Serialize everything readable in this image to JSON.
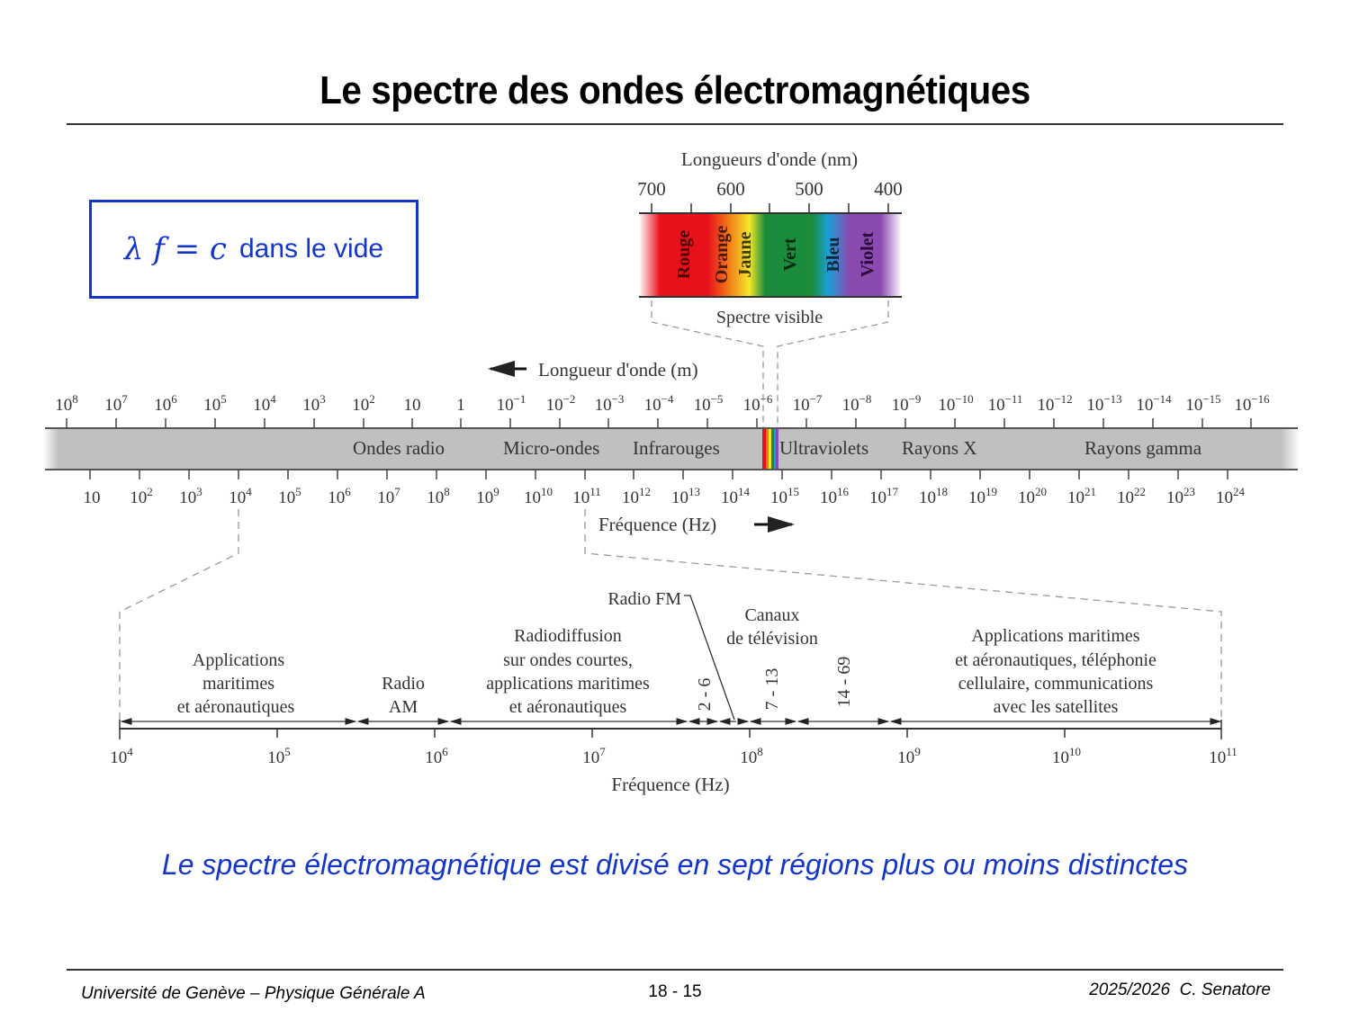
{
  "slide": {
    "title": "Le spectre des ondes électromagnétiques",
    "formula": "λ f = c",
    "formula_note": "dans le vide",
    "caption": "Le spectre électromagnétique est divisé en sept régions plus ou moins distinctes",
    "colors": {
      "accent_blue": "#1436c8",
      "band_gray": "#c0c0c0",
      "text_dark": "#333333"
    }
  },
  "visible_spectrum": {
    "axis_title": "Longueurs d'onde (nm)",
    "ticks": [
      "700",
      "600",
      "500",
      "400"
    ],
    "colors": [
      {
        "name": "Rouge",
        "hex": "#e8101a"
      },
      {
        "name": "Orange",
        "hex": "#f07818"
      },
      {
        "name": "Jaune",
        "hex": "#f5e82a"
      },
      {
        "name": "Vert",
        "hex": "#1a8c3c"
      },
      {
        "name": "Bleu",
        "hex": "#1aa0d8"
      },
      {
        "name": "Violet",
        "hex": "#8a4ab0"
      }
    ],
    "label": "Spectre visible"
  },
  "main_spectrum": {
    "wavelength_title": "Longueur d'onde (m)",
    "frequency_title": "Fréquence (Hz)",
    "wavelength_ticks": [
      "10^8",
      "10^7",
      "10^6",
      "10^5",
      "10^4",
      "10^3",
      "10^2",
      "10",
      "1",
      "10^-1",
      "10^-2",
      "10^-3",
      "10^-4",
      "10^-5",
      "10^-6",
      "10^-7",
      "10^-8",
      "10^-9",
      "10^-10",
      "10^-11",
      "10^-12",
      "10^-13",
      "10^-14",
      "10^-15",
      "10^-16"
    ],
    "frequency_ticks": [
      "10",
      "10^2",
      "10^3",
      "10^4",
      "10^5",
      "10^6",
      "10^7",
      "10^8",
      "10^9",
      "10^10",
      "10^11",
      "10^12",
      "10^13",
      "10^14",
      "10^15",
      "10^16",
      "10^17",
      "10^18",
      "10^19",
      "10^20",
      "10^21",
      "10^22",
      "10^23",
      "10^24"
    ],
    "regions": [
      "Ondes radio",
      "Micro-ondes",
      "Infrarouges",
      "Ultraviolets",
      "Rayons X",
      "Rayons gamma"
    ]
  },
  "radio_detail": {
    "frequency_title": "Fréquence (Hz)",
    "ticks": [
      "10^4",
      "10^5",
      "10^6",
      "10^7",
      "10^8",
      "10^9",
      "10^10",
      "10^11"
    ],
    "bands": [
      {
        "lines": [
          "Applications",
          "maritimes",
          "et aéronautiques"
        ]
      },
      {
        "lines": [
          "Radio",
          "AM"
        ]
      },
      {
        "lines": [
          "Radiodiffusion",
          "sur ondes courtes,",
          "applications maritimes",
          "et aéronautiques"
        ]
      },
      {
        "lines": [
          "2 - 6"
        ]
      },
      {
        "lines": [
          "7 - 13"
        ]
      },
      {
        "lines": [
          "14 - 69"
        ]
      },
      {
        "lines": [
          "Applications maritimes",
          "et aéronautiques, téléphonie",
          "cellulaire, communications",
          "avec les satellites"
        ]
      }
    ],
    "fm_label": "Radio FM",
    "tv_label": [
      "Canaux",
      "de télévision"
    ]
  },
  "footer": {
    "left": "Université de Genève – Physique Générale A",
    "center": "18 - 15",
    "right": "2025/2026  C. Senatore"
  }
}
